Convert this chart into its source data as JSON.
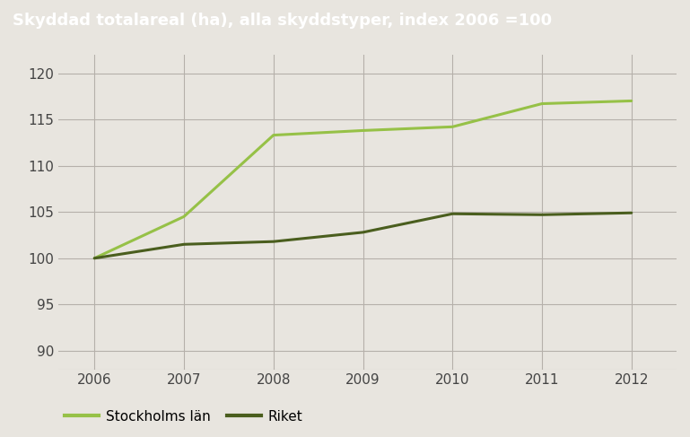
{
  "title": "Skyddad totalareal (ha), alla skyddstyper, index 2006 =100",
  "title_bg_color": "#928d87",
  "title_text_color": "#ffffff",
  "bg_color": "#e8e5df",
  "plot_bg_color": "#e8e5df",
  "years": [
    2006,
    2007,
    2008,
    2009,
    2010,
    2011,
    2012
  ],
  "stockholm_values": [
    100.0,
    104.5,
    113.3,
    113.8,
    114.2,
    116.7,
    117.0
  ],
  "riket_values": [
    100.0,
    101.5,
    101.8,
    102.8,
    104.8,
    104.7,
    104.9
  ],
  "stockholm_color": "#96c147",
  "riket_color": "#4a5e1e",
  "line_width": 2.2,
  "ylim": [
    88,
    122
  ],
  "yticks": [
    90,
    95,
    100,
    105,
    110,
    115,
    120
  ],
  "xlim": [
    2005.6,
    2012.5
  ],
  "legend_stockholm": "Stockholms län",
  "legend_riket": "Riket",
  "grid_color": "#b5b0aa",
  "grid_linewidth": 0.8,
  "tick_fontsize": 11,
  "title_fontsize": 13
}
